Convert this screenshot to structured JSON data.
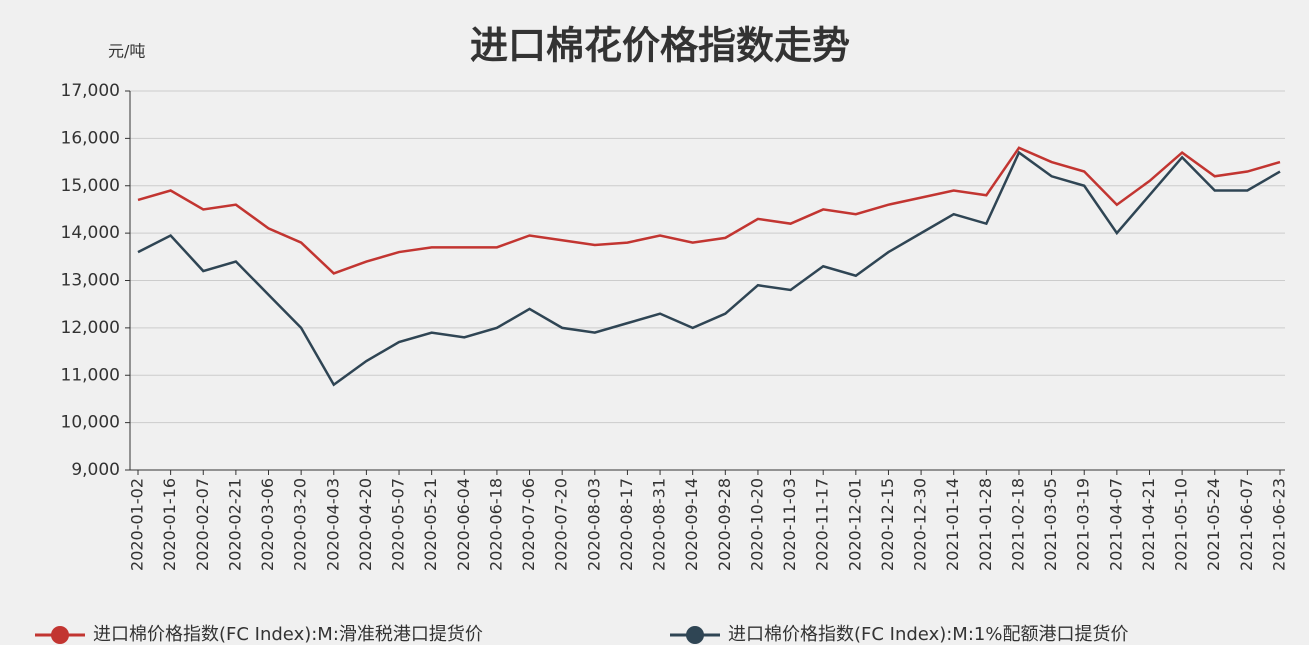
{
  "chart_data": {
    "type": "line",
    "title": "进口棉花价格指数走势",
    "y_axis_label": "元/吨",
    "categories": [
      "2020-01-02",
      "2020-01-16",
      "2020-02-07",
      "2020-02-21",
      "2020-03-06",
      "2020-03-20",
      "2020-04-03",
      "2020-04-20",
      "2020-05-07",
      "2020-05-21",
      "2020-06-04",
      "2020-06-18",
      "2020-07-06",
      "2020-07-20",
      "2020-08-03",
      "2020-08-17",
      "2020-08-31",
      "2020-09-14",
      "2020-09-28",
      "2020-10-20",
      "2020-11-03",
      "2020-11-17",
      "2020-12-01",
      "2020-12-15",
      "2020-12-30",
      "2021-01-14",
      "2021-01-28",
      "2021-02-18",
      "2021-03-05",
      "2021-03-19",
      "2021-04-07",
      "2021-04-21",
      "2021-05-10",
      "2021-05-24",
      "2021-06-07",
      "2021-06-23"
    ],
    "series": [
      {
        "name": "进口棉价格指数(FC Index):M:滑准税港口提货价",
        "color": "#c23531",
        "values": [
          14700,
          14900,
          14500,
          14600,
          14100,
          13800,
          13150,
          13400,
          13600,
          13700,
          13700,
          13700,
          13950,
          13850,
          13750,
          13800,
          13950,
          13800,
          13900,
          14300,
          14200,
          14500,
          14400,
          14600,
          14750,
          14900,
          14800,
          15800,
          15500,
          15300,
          14600,
          15100,
          15700,
          15200,
          15300,
          15500
        ]
      },
      {
        "name": "进口棉价格指数(FC Index):M:1%配额港口提货价",
        "color": "#2f4554",
        "values": [
          13600,
          13950,
          13200,
          13400,
          12700,
          12000,
          10800,
          11300,
          11700,
          11900,
          11800,
          12000,
          12400,
          12000,
          11900,
          12100,
          12300,
          12000,
          12300,
          12900,
          12800,
          13300,
          13100,
          13600,
          14000,
          14400,
          14200,
          15700,
          15200,
          15000,
          14000,
          14800,
          15600,
          14900,
          14900,
          15300
        ]
      }
    ],
    "ylim": [
      9000,
      17000
    ],
    "yticks": [
      {
        "value": 9000,
        "label": "9,000"
      },
      {
        "value": 10000,
        "label": "10,000"
      },
      {
        "value": 11000,
        "label": "11,000"
      },
      {
        "value": 12000,
        "label": "12,000"
      },
      {
        "value": 13000,
        "label": "13,000"
      },
      {
        "value": 14000,
        "label": "14,000"
      },
      {
        "value": 15000,
        "label": "15,000"
      },
      {
        "value": 16000,
        "label": "16,000"
      },
      {
        "value": 17000,
        "label": "17,000"
      }
    ],
    "grid": true,
    "legend": "bottom"
  }
}
